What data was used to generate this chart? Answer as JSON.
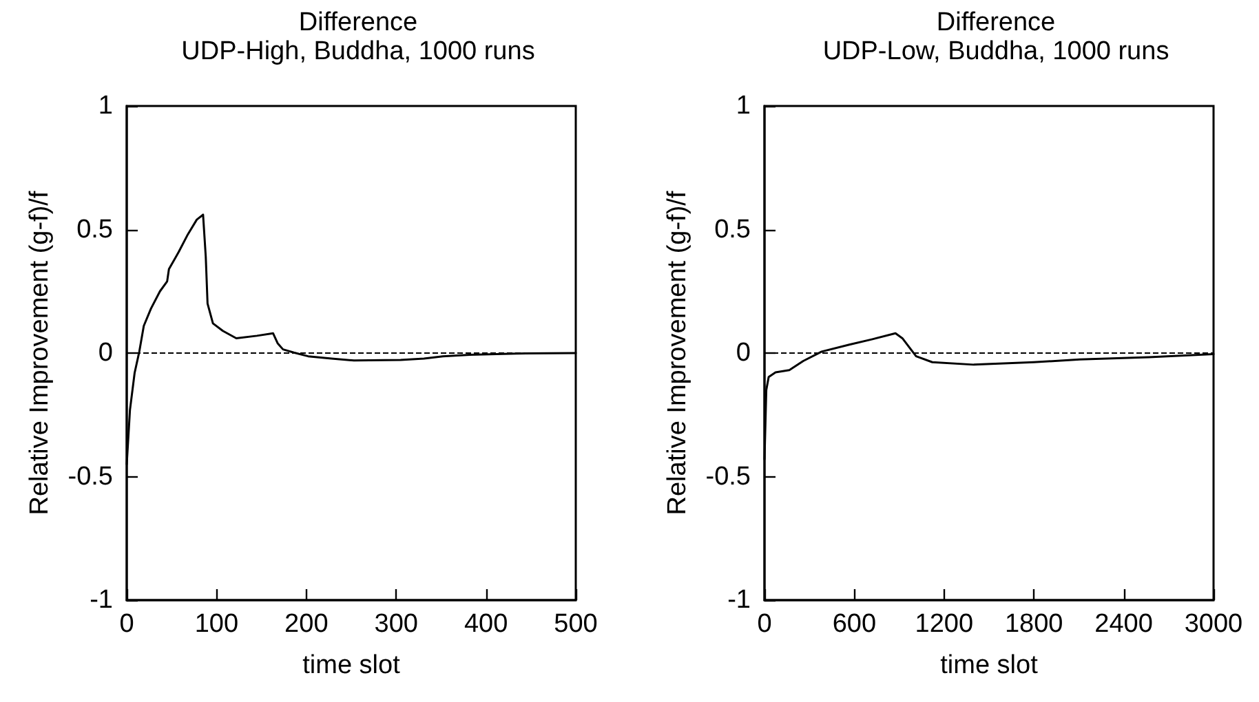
{
  "chart_data": [
    {
      "type": "line",
      "title": "Difference",
      "subtitle": "UDP-High, Buddha, 1000 runs",
      "xlabel": "time slot",
      "ylabel": "Relative Improvement (g-f)/f",
      "xlim": [
        0,
        500
      ],
      "xticks": [
        0,
        100,
        200,
        300,
        400,
        500
      ],
      "ylim": [
        -1,
        1
      ],
      "yticks": [
        -1,
        -0.5,
        0,
        0.5,
        1
      ],
      "grid": false,
      "marker": "none",
      "line_style": "solid",
      "x": [
        0,
        3.6,
        8.8,
        14,
        19,
        27,
        37,
        45,
        47,
        58,
        68,
        78,
        85,
        88,
        90,
        96,
        107,
        122,
        145,
        163,
        168,
        174,
        186,
        202,
        228,
        253,
        305,
        331,
        352,
        382,
        434,
        500
      ],
      "series": [
        {
          "color": "#000000",
          "values": [
            -0.45,
            -0.23,
            -0.08,
            0.006,
            0.11,
            0.18,
            0.25,
            0.29,
            0.34,
            0.41,
            0.48,
            0.54,
            0.56,
            0.39,
            0.2,
            0.12,
            0.09,
            0.06,
            0.07,
            0.08,
            0.04,
            0.015,
            0.002,
            -0.013,
            -0.022,
            -0.03,
            -0.028,
            -0.022,
            -0.013,
            -0.007,
            -0.002,
            0
          ]
        }
      ],
      "ref_lines": [
        {
          "axis": "y",
          "value": 0,
          "color": "#000000",
          "line_style": "dashed"
        }
      ]
    },
    {
      "type": "line",
      "title": "Difference",
      "subtitle": "UDP-Low, Buddha, 1000 runs",
      "xlabel": "time slot",
      "ylabel": "Relative Improvement (g-f)/f",
      "xlim": [
        0,
        3000
      ],
      "xticks": [
        0,
        600,
        1200,
        1800,
        2400,
        3000
      ],
      "ylim": [
        -1,
        1
      ],
      "yticks": [
        -1,
        -0.5,
        0,
        0.5,
        1
      ],
      "grid": false,
      "marker": "none",
      "line_style": "solid",
      "x": [
        0,
        12,
        28,
        74,
        166,
        259,
        382,
        567,
        721,
        875,
        921,
        1013,
        1121,
        1398,
        1799,
        2107,
        2569,
        3000
      ],
      "series": [
        {
          "color": "#000000",
          "values": [
            -0.43,
            -0.15,
            -0.097,
            -0.078,
            -0.069,
            -0.032,
            0.006,
            0.034,
            0.056,
            0.08,
            0.06,
            -0.013,
            -0.037,
            -0.047,
            -0.037,
            -0.026,
            -0.017,
            -0.004
          ]
        }
      ],
      "ref_lines": [
        {
          "axis": "y",
          "value": 0,
          "color": "#000000",
          "line_style": "dashed"
        }
      ]
    }
  ]
}
